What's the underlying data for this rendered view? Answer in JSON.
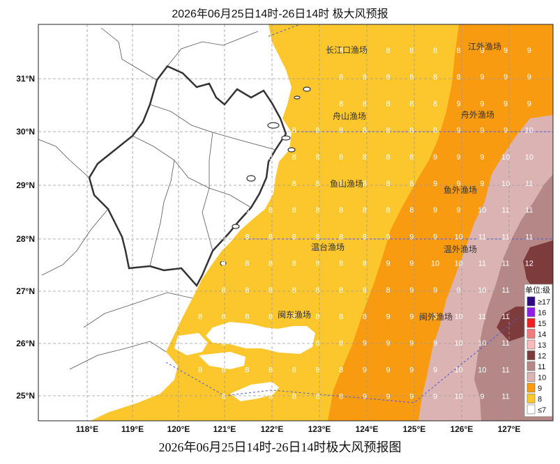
{
  "title": "2026年06月25日14时-26日14时 极大风预报",
  "caption": "2026年06月25日14时-26日14时极大风预报图",
  "colors": {
    "level8": "#fcc72c",
    "level9": "#f99b10",
    "level10": "#dcb3b3",
    "level11": "#b68787",
    "level12": "#7e3b3b",
    "level13": "#fbbaba",
    "level14": "#f57b7b",
    "level15": "#f02020",
    "level16": "#8e1ee8",
    "level17": "#2f0a86",
    "le7": "#ffffff"
  },
  "lat_labels": [
    "31°N",
    "30°N",
    "29°N",
    "28°N",
    "27°N",
    "26°N",
    "25°N"
  ],
  "lon_labels": [
    "118°E",
    "119°E",
    "120°E",
    "121°E",
    "122°E",
    "123°E",
    "124°E",
    "125°E",
    "126°E",
    "127°E"
  ],
  "fishing_grounds": [
    {
      "name": "长江口渔场"
    },
    {
      "name": "江外渔场"
    },
    {
      "name": "舟山渔场"
    },
    {
      "name": "舟外渔场"
    },
    {
      "name": "鱼山渔场"
    },
    {
      "name": "鱼外渔场"
    },
    {
      "name": "温台渔场"
    },
    {
      "name": "温外渔场"
    },
    {
      "name": "闽东渔场"
    },
    {
      "name": "闽外渔场"
    }
  ],
  "grid_values": [
    [
      8,
      8,
      8,
      8,
      8,
      8,
      9,
      9,
      9
    ],
    [
      8,
      8,
      8,
      8,
      8,
      8,
      9,
      9,
      9
    ],
    [
      8,
      8,
      8,
      8,
      8,
      9,
      9,
      9,
      9
    ],
    [
      8,
      8,
      8,
      8,
      8,
      8,
      8,
      9,
      9,
      9,
      10
    ],
    [
      8,
      8,
      8,
      8,
      8,
      8,
      8,
      8,
      9,
      9,
      9,
      10,
      10
    ],
    [
      8,
      8,
      8,
      8,
      8,
      8,
      8,
      8,
      9,
      9,
      9,
      10,
      11
    ],
    [
      8,
      8,
      8,
      8,
      8,
      8,
      8,
      8,
      8,
      9,
      9,
      10,
      11,
      11
    ],
    [
      8,
      8,
      8,
      8,
      8,
      8,
      8,
      9,
      9,
      9,
      10,
      11,
      11,
      11
    ],
    [
      8,
      8,
      8,
      8,
      8,
      8,
      8,
      8,
      9,
      9,
      10,
      10,
      11,
      11,
      12
    ],
    [
      8,
      8,
      8,
      8,
      8,
      8,
      8,
      8,
      9,
      9,
      9,
      10,
      11,
      11
    ],
    [
      8,
      8,
      8,
      8,
      8,
      8,
      8,
      8,
      9,
      9,
      9,
      10,
      11,
      11,
      12
    ],
    [
      8,
      8,
      8,
      8,
      8,
      8,
      8,
      9,
      9,
      9,
      9,
      10,
      10,
      11,
      11
    ],
    [
      8,
      8,
      8,
      8,
      8,
      8,
      8,
      9,
      9,
      9,
      9,
      10,
      10,
      11,
      11
    ],
    [
      8,
      8,
      8,
      8,
      8,
      8,
      9,
      9,
      9,
      9,
      10,
      9,
      11,
      11
    ]
  ],
  "legend": {
    "title": "单位:级",
    "items": [
      {
        "label": "≥17",
        "color": "#2f0a86"
      },
      {
        "label": "16",
        "color": "#8e1ee8"
      },
      {
        "label": "15",
        "color": "#f02020"
      },
      {
        "label": "14",
        "color": "#f57b7b"
      },
      {
        "label": "13",
        "color": "#fbbaba"
      },
      {
        "label": "12",
        "color": "#7e3b3b"
      },
      {
        "label": "11",
        "color": "#b68787"
      },
      {
        "label": "10",
        "color": "#dcb3b3"
      },
      {
        "label": "9",
        "color": "#f99b10"
      },
      {
        "label": "8",
        "color": "#fcc72c"
      },
      {
        "label": "≤7",
        "color": "#ffffff"
      }
    ]
  }
}
